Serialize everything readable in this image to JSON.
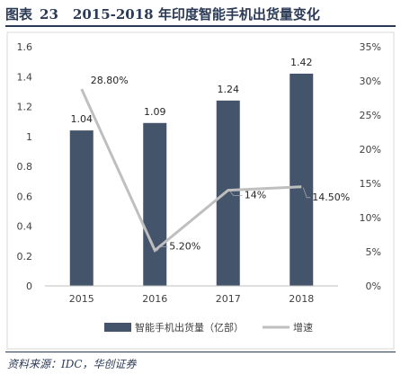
{
  "header": {
    "label": "图表",
    "number": "23",
    "title": "2015-2018 年印度智能手机出货量变化"
  },
  "footer": {
    "source": "资料来源：IDC，华创证券"
  },
  "chart_data": {
    "type": "bar",
    "categories": [
      "2015",
      "2016",
      "2017",
      "2018"
    ],
    "series": [
      {
        "name": "智能手机出货量（亿部）",
        "type": "bar",
        "axis": "left",
        "values": [
          1.04,
          1.09,
          1.24,
          1.42
        ],
        "labels": [
          "1.04",
          "1.09",
          "1.24",
          "1.42"
        ]
      },
      {
        "name": "增速",
        "type": "line",
        "axis": "right",
        "values": [
          28.8,
          5.2,
          14.0,
          14.5
        ],
        "labels": [
          "28.80%",
          "5.20%",
          "14%",
          "14.50%"
        ]
      }
    ],
    "y_left": {
      "min": 0,
      "max": 1.6,
      "ticks": [
        "0",
        "0.2",
        "0.4",
        "0.6",
        "0.8",
        "1",
        "1.2",
        "1.4",
        "1.6"
      ]
    },
    "y_right": {
      "min": 0,
      "max": 35,
      "ticks": [
        "0%",
        "5%",
        "10%",
        "15%",
        "20%",
        "25%",
        "30%",
        "35%"
      ]
    },
    "grid": false,
    "legend": "bottom",
    "colors": {
      "bar": "#44546a",
      "line": "#bfbfbf"
    }
  }
}
